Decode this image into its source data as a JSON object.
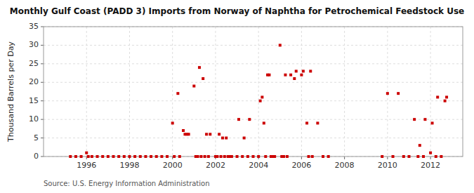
{
  "chart_data": {
    "type": "scatter",
    "title": "Monthly Gulf Coast (PADD 3) Imports from Norway of Naphtha for Petrochemical Feedstock Use",
    "y_label": "Thousand Barrels per Day",
    "annotations": [
      "Source: U.S. Energy Information Administration"
    ],
    "color": "#cc0000",
    "marker": "square",
    "grid": true,
    "xlim": [
      1994.0,
      2013.5
    ],
    "ylim": [
      0,
      35
    ],
    "xticks": [
      1996,
      1998,
      2000,
      2002,
      2004,
      2006,
      2008,
      2010,
      2012
    ],
    "yticks": [
      0,
      5,
      10,
      15,
      20,
      25,
      30,
      35
    ],
    "x": [
      1995.25,
      1995.5,
      1995.75,
      1996.0,
      1996.08,
      1996.25,
      1996.5,
      1996.75,
      1997.0,
      1997.25,
      1997.5,
      1997.75,
      1998.0,
      1998.25,
      1998.5,
      1998.75,
      1999.0,
      1999.25,
      1999.5,
      1999.75,
      2000.0,
      2000.08,
      2000.25,
      2000.33,
      2000.5,
      2000.58,
      2000.67,
      2000.75,
      2001.0,
      2001.08,
      2001.17,
      2001.25,
      2001.33,
      2001.42,
      2001.5,
      2001.58,
      2001.67,
      2001.75,
      2002.0,
      2002.08,
      2002.17,
      2002.25,
      2002.33,
      2002.42,
      2002.5,
      2002.58,
      2002.67,
      2002.75,
      2003.0,
      2003.08,
      2003.25,
      2003.33,
      2003.5,
      2003.58,
      2003.75,
      2004.0,
      2004.08,
      2004.17,
      2004.25,
      2004.33,
      2004.42,
      2004.5,
      2004.58,
      2004.67,
      2004.75,
      2005.0,
      2005.08,
      2005.17,
      2005.25,
      2005.33,
      2005.5,
      2005.67,
      2005.75,
      2006.0,
      2006.08,
      2006.25,
      2006.33,
      2006.42,
      2006.5,
      2006.75,
      2007.0,
      2007.25,
      2009.75,
      2010.0,
      2010.25,
      2010.5,
      2010.75,
      2011.0,
      2011.25,
      2011.42,
      2011.5,
      2011.67,
      2011.75,
      2012.0,
      2012.08,
      2012.25,
      2012.33,
      2012.5,
      2012.67,
      2012.75
    ],
    "values": [
      0,
      0,
      0,
      1,
      0,
      0,
      0,
      0,
      0,
      0,
      0,
      0,
      0,
      0,
      0,
      0,
      0,
      0,
      0,
      0,
      9,
      0,
      17,
      0,
      7,
      6,
      6,
      6,
      19,
      0,
      0,
      24,
      0,
      21,
      0,
      6,
      0,
      6,
      0,
      0,
      6,
      0,
      5,
      0,
      5,
      0,
      0,
      0,
      0,
      10,
      0,
      5,
      0,
      10,
      0,
      0,
      15,
      16,
      9,
      0,
      22,
      22,
      0,
      0,
      0,
      30,
      0,
      0,
      22,
      0,
      22,
      21,
      23,
      22,
      23,
      9,
      0,
      23,
      0,
      9,
      0,
      0,
      0,
      17,
      0,
      17,
      0,
      0,
      10,
      0,
      3,
      0,
      10,
      1,
      9,
      0,
      16,
      0,
      15,
      16
    ]
  }
}
